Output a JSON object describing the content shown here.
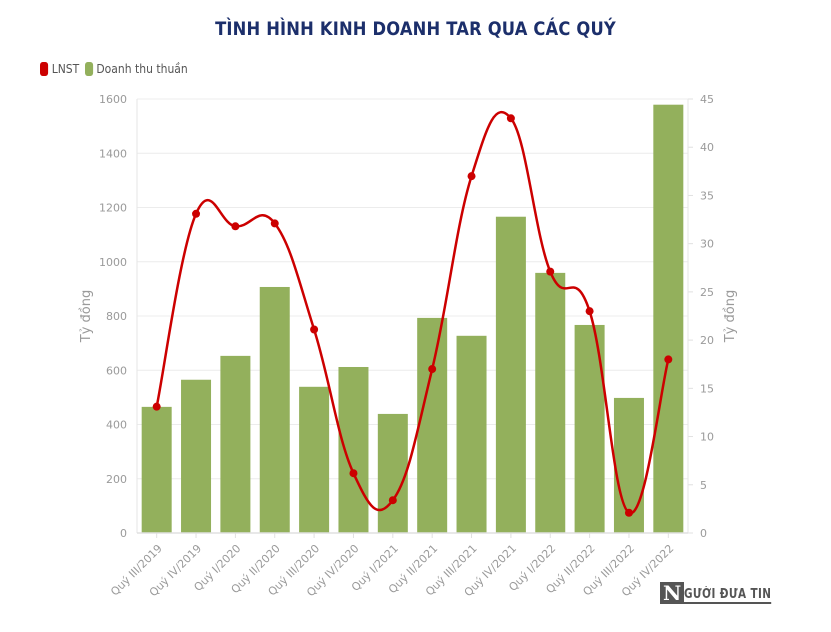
{
  "chart_data": {
    "type": "bar+line",
    "title": "TÌNH HÌNH KINH DOANH TAR QUA CÁC QUÝ",
    "categories": [
      "Quý III/2019",
      "Quý IV/2019",
      "Quý I/2020",
      "Quý II/2020",
      "Quý III/2020",
      "Quý IV/2020",
      "Quý I/2021",
      "Quý II/2021",
      "Quý III/2021",
      "Quý IV/2021",
      "Quý I/2022",
      "Quý II/2022",
      "Quý III/2022",
      "Quý IV/2022"
    ],
    "series": [
      {
        "name": "LNST",
        "type": "line",
        "axis": "right",
        "color": "#cc0000",
        "values": [
          13.1,
          33.1,
          31.8,
          32.1,
          21.1,
          6.2,
          3.4,
          17.0,
          37.0,
          43.0,
          27.1,
          23.0,
          2.1,
          18.0
        ]
      },
      {
        "name": "Doanh thu thuần",
        "type": "bar",
        "axis": "left",
        "color": "#93b05c",
        "values": [
          465,
          565,
          653,
          907,
          539,
          612,
          439,
          793,
          727,
          1166,
          959,
          767,
          498,
          1579
        ]
      }
    ],
    "ylabel": "Tỷ đồng",
    "ylabel_right": "Tỷ đồng",
    "ylim": [
      0,
      1600
    ],
    "yticks": [
      0,
      200,
      400,
      600,
      800,
      1000,
      1200,
      1400,
      1600
    ],
    "ylim_right": [
      0,
      45
    ],
    "yticks_right": [
      0,
      5,
      10,
      15,
      20,
      25,
      30,
      35,
      40,
      45
    ],
    "grid": true,
    "legend_position": "top-left"
  },
  "legend": [
    {
      "label": "LNST",
      "color": "#cc0000"
    },
    {
      "label": "Doanh thu thuần",
      "color": "#93b05c"
    }
  ],
  "watermark": {
    "initial": "N",
    "text": "GƯỜI ĐƯA TIN"
  }
}
